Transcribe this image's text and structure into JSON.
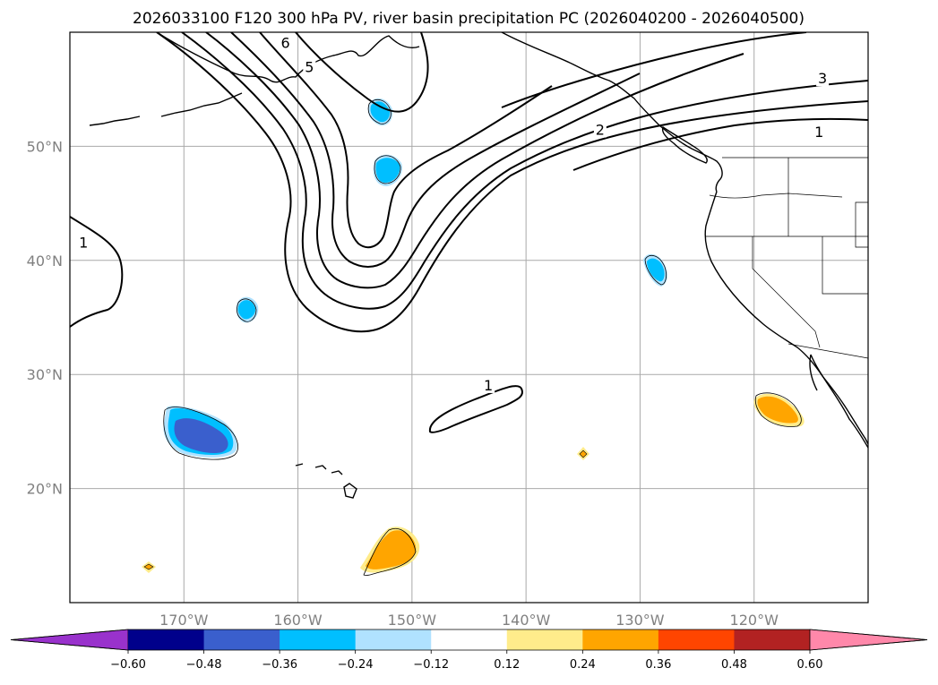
{
  "title": "2026033100 F120 300 hPa PV, river basin precipitation PC (2026040200 - 2026040500)",
  "map": {
    "lon_range": [
      -180,
      -110
    ],
    "lat_range": [
      10,
      60
    ],
    "lon_ticks": [
      {
        "lon": -170,
        "label": "170°W"
      },
      {
        "lon": -160,
        "label": "160°W"
      },
      {
        "lon": -150,
        "label": "150°W"
      },
      {
        "lon": -140,
        "label": "140°W"
      },
      {
        "lon": -130,
        "label": "130°W"
      },
      {
        "lon": -120,
        "label": "120°W"
      }
    ],
    "lat_ticks": [
      {
        "lat": 50,
        "label": "50°N"
      },
      {
        "lat": 40,
        "label": "40°N"
      },
      {
        "lat": 30,
        "label": "30°N"
      },
      {
        "lat": 20,
        "label": "20°N"
      }
    ],
    "gridline_color": "#a9a9a9",
    "pv_contour_labels": [
      {
        "text": "1",
        "lon": -178.8,
        "lat": 41.5
      },
      {
        "text": "1",
        "lon": -143.3,
        "lat": 29.0
      },
      {
        "text": "1",
        "lon": -114.3,
        "lat": 51.2
      },
      {
        "text": "2",
        "lon": -133.5,
        "lat": 51.4
      },
      {
        "text": "3",
        "lon": -114.0,
        "lat": 55.9
      },
      {
        "text": "5",
        "lon": -159.0,
        "lat": 56.9
      },
      {
        "text": "6",
        "lon": -161.1,
        "lat": 59.0
      }
    ]
  },
  "colorbar": {
    "tick_labels": [
      "−0.60",
      "−0.48",
      "−0.36",
      "−0.24",
      "−0.12",
      "0.12",
      "0.24",
      "0.36",
      "0.48",
      "0.60"
    ],
    "colors": [
      "#9932cc",
      "#00008b",
      "#3a5fcd",
      "#00bfff",
      "#b0e2ff",
      "#ffffff",
      "#ffec8b",
      "#ffa500",
      "#ff4500",
      "#b22222",
      "#ff88aa"
    ]
  }
}
